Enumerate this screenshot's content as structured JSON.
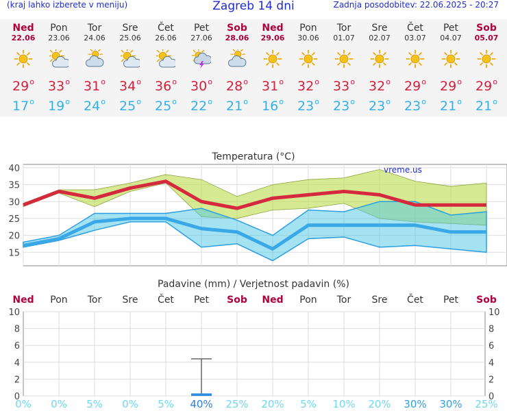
{
  "header": {
    "hint": "(kraj lahko izberete v meniju)",
    "title": "Zagreb 14 dni",
    "updated": "Zadnja posodobitev: 22.06.2025 - 20:27"
  },
  "days": [
    {
      "name": "Ned",
      "date": "22.06",
      "weekend": true,
      "icon": "sun-icon",
      "tmax": "29",
      "tmin": "17",
      "precip_prob": "0%",
      "precip_mm": 0
    },
    {
      "name": "Pon",
      "date": "23.06",
      "weekend": false,
      "icon": "sun-cloud-icon",
      "tmax": "33",
      "tmin": "19",
      "precip_prob": "0%",
      "precip_mm": 0
    },
    {
      "name": "Tor",
      "date": "24.06",
      "weekend": false,
      "icon": "cloud-sun-icon",
      "tmax": "31",
      "tmin": "24",
      "precip_prob": "5%",
      "precip_mm": 0
    },
    {
      "name": "Sre",
      "date": "25.06",
      "weekend": false,
      "icon": "sun-cloud-icon",
      "tmax": "34",
      "tmin": "25",
      "precip_prob": "0%",
      "precip_mm": 0
    },
    {
      "name": "Čet",
      "date": "26.06",
      "weekend": false,
      "icon": "sun-cloud-icon",
      "tmax": "36",
      "tmin": "25",
      "precip_prob": "5%",
      "precip_mm": 0
    },
    {
      "name": "Pet",
      "date": "27.06",
      "weekend": false,
      "icon": "thunderstorm-icon",
      "tmax": "30",
      "tmin": "22",
      "precip_prob": "40%",
      "precip_mm": 0.3
    },
    {
      "name": "Sob",
      "date": "28.06",
      "weekend": true,
      "icon": "cloud-sun-icon",
      "tmax": "28",
      "tmin": "21",
      "precip_prob": "25%",
      "precip_mm": 0
    },
    {
      "name": "Ned",
      "date": "29.06",
      "weekend": true,
      "icon": "sun-icon",
      "tmax": "31",
      "tmin": "16",
      "precip_prob": "20%",
      "precip_mm": 0
    },
    {
      "name": "Pon",
      "date": "30.06",
      "weekend": false,
      "icon": "sun-icon",
      "tmax": "32",
      "tmin": "23",
      "precip_prob": "5%",
      "precip_mm": 0
    },
    {
      "name": "Tor",
      "date": "01.07",
      "weekend": false,
      "icon": "sun-icon",
      "tmax": "33",
      "tmin": "23",
      "precip_prob": "10%",
      "precip_mm": 0
    },
    {
      "name": "Sre",
      "date": "02.07",
      "weekend": false,
      "icon": "sun-icon",
      "tmax": "32",
      "tmin": "23",
      "precip_prob": "20%",
      "precip_mm": 0
    },
    {
      "name": "Čet",
      "date": "03.07",
      "weekend": false,
      "icon": "sun-icon",
      "tmax": "29",
      "tmin": "23",
      "precip_prob": "30%",
      "precip_mm": 0
    },
    {
      "name": "Pet",
      "date": "04.07",
      "weekend": false,
      "icon": "sun-icon",
      "tmax": "29",
      "tmin": "21",
      "precip_prob": "30%",
      "precip_mm": 0
    },
    {
      "name": "Sob",
      "date": "05.07",
      "weekend": true,
      "icon": "sun-icon",
      "tmax": "29",
      "tmin": "21",
      "precip_prob": "25%",
      "precip_mm": 0
    }
  ],
  "degree_symbol": "o",
  "chart_data": [
    {
      "type": "line",
      "title": "Temperatura (°C)",
      "watermark": "vreme.us",
      "ylim": [
        11,
        41
      ],
      "yticks": [
        15,
        20,
        25,
        30,
        35,
        40
      ],
      "grid": true,
      "series": [
        {
          "values": [
            29,
            33,
            31,
            34,
            36,
            30,
            28,
            31,
            32,
            33,
            32,
            29,
            29,
            29
          ],
          "color": "#d52a3e"
        },
        {
          "values": [
            17,
            19,
            24,
            25,
            25,
            22,
            21,
            16,
            23,
            23,
            23,
            23,
            21,
            21
          ],
          "color": "#3aa7e6"
        }
      ],
      "max_range_upper": [
        29.5,
        33.5,
        33.5,
        35.5,
        38,
        36.5,
        31.5,
        35,
        36.5,
        37,
        39.5,
        36,
        34.5,
        35.5
      ],
      "max_range_lower": [
        28.5,
        32.5,
        28.5,
        33,
        35.5,
        25.5,
        25,
        27.5,
        28,
        29.5,
        25,
        24,
        23.5,
        23
      ],
      "min_range_upper": [
        18,
        20,
        26.5,
        26.5,
        26.5,
        28,
        24.5,
        20,
        27.5,
        27,
        30,
        30,
        26,
        27
      ],
      "min_range_lower": [
        16.5,
        18.5,
        21.5,
        24,
        24,
        16.5,
        17.5,
        12.5,
        19,
        19.5,
        16.5,
        17,
        16,
        15
      ]
    },
    {
      "type": "bar",
      "title": "Padavine (mm) / Verjetnost padavin (%)",
      "ylim": [
        0,
        10
      ],
      "yticks": [
        0,
        2,
        4,
        6,
        8,
        10
      ],
      "grid": true,
      "values": [
        0,
        0,
        0,
        0,
        0,
        0.3,
        0,
        0,
        0,
        0,
        0,
        0,
        0,
        0
      ],
      "error_high": [
        null,
        null,
        null,
        null,
        null,
        4.4,
        null,
        null,
        null,
        null,
        null,
        null,
        null,
        null
      ],
      "bar_color": "#2f8de4"
    }
  ]
}
